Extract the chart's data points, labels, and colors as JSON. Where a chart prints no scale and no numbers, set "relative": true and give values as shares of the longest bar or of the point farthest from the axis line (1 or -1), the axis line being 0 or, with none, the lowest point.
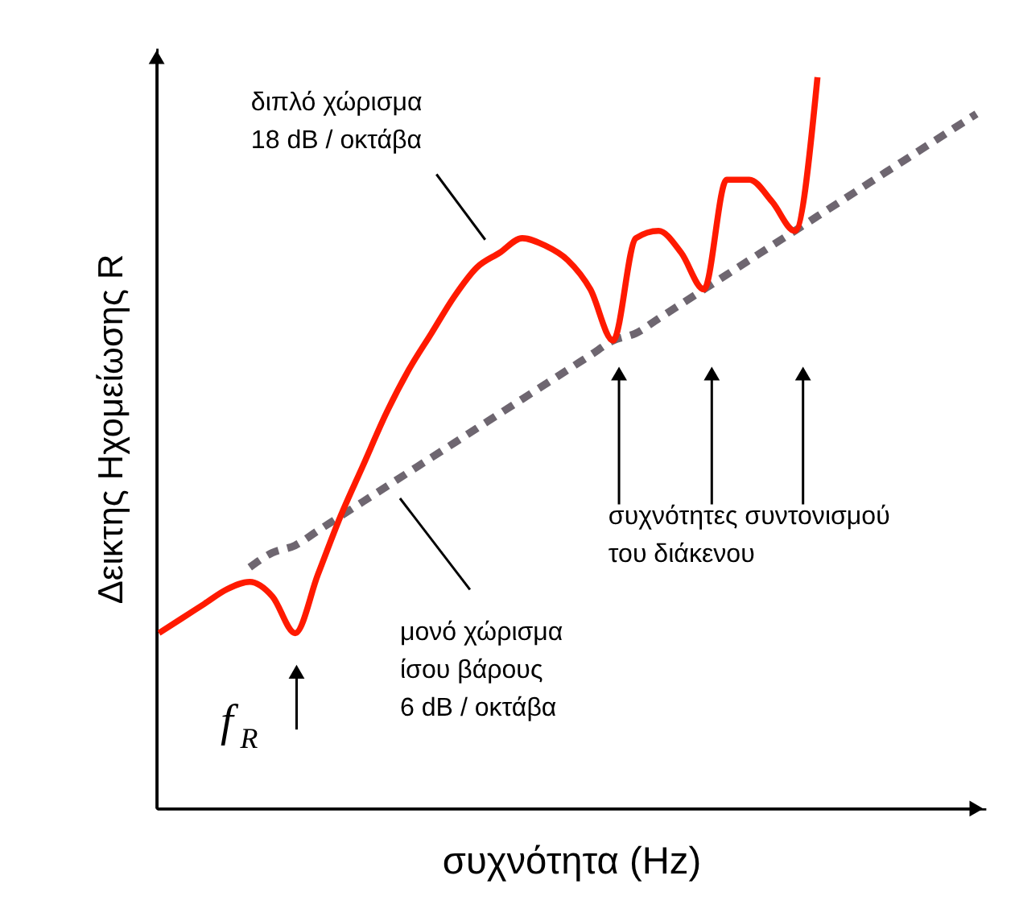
{
  "chart_data": {
    "type": "line",
    "relative": true,
    "marker": "none",
    "xlabel": "συχνότητα  (Hz)",
    "ylabel": "Δεικτης Ηχομείωσης R",
    "categories": [
      null,
      null,
      null,
      null,
      null,
      null,
      null,
      null,
      null,
      null,
      null,
      null,
      null,
      null,
      null,
      null,
      null,
      null,
      null,
      null,
      null,
      null,
      null,
      null,
      null,
      null,
      null,
      null,
      null,
      null,
      null,
      null,
      null,
      null,
      null,
      null,
      null
    ],
    "series": [
      {
        "color": "#6e6670",
        "line_style": "dashed",
        "values": [
          null,
          null,
          null,
          null,
          0.33,
          0.35,
          0.36,
          0.38,
          0.4,
          0.42,
          0.44,
          0.46,
          0.48,
          0.5,
          0.52,
          0.54,
          0.56,
          0.58,
          0.6,
          0.62,
          0.64,
          0.65,
          0.67,
          0.69,
          0.71,
          0.73,
          0.75,
          0.77,
          0.79,
          0.81,
          0.83,
          0.85,
          0.87,
          0.89,
          0.91,
          0.93,
          0.95
        ]
      },
      {
        "color": "#ff1a00",
        "line_style": "solid",
        "values": [
          0.24,
          0.26,
          0.28,
          0.3,
          0.31,
          0.29,
          0.24,
          0.32,
          0.4,
          0.47,
          0.54,
          0.6,
          0.65,
          0.7,
          0.74,
          0.76,
          0.78,
          0.77,
          0.75,
          0.71,
          0.64,
          0.78,
          0.79,
          0.76,
          0.71,
          0.86,
          0.86,
          0.83,
          0.79,
          1.0,
          null,
          null,
          null,
          null,
          null,
          null,
          null
        ]
      }
    ],
    "annotations": [
      "διπλό χώρισμα\n18 dB / οκτάβα",
      "συχνότητες συντονισμού\nτου διάκενου",
      "μονό χώρισμα\nίσου βάρους\n6 dB / οκτάβα",
      "f$_{R}$"
    ]
  }
}
